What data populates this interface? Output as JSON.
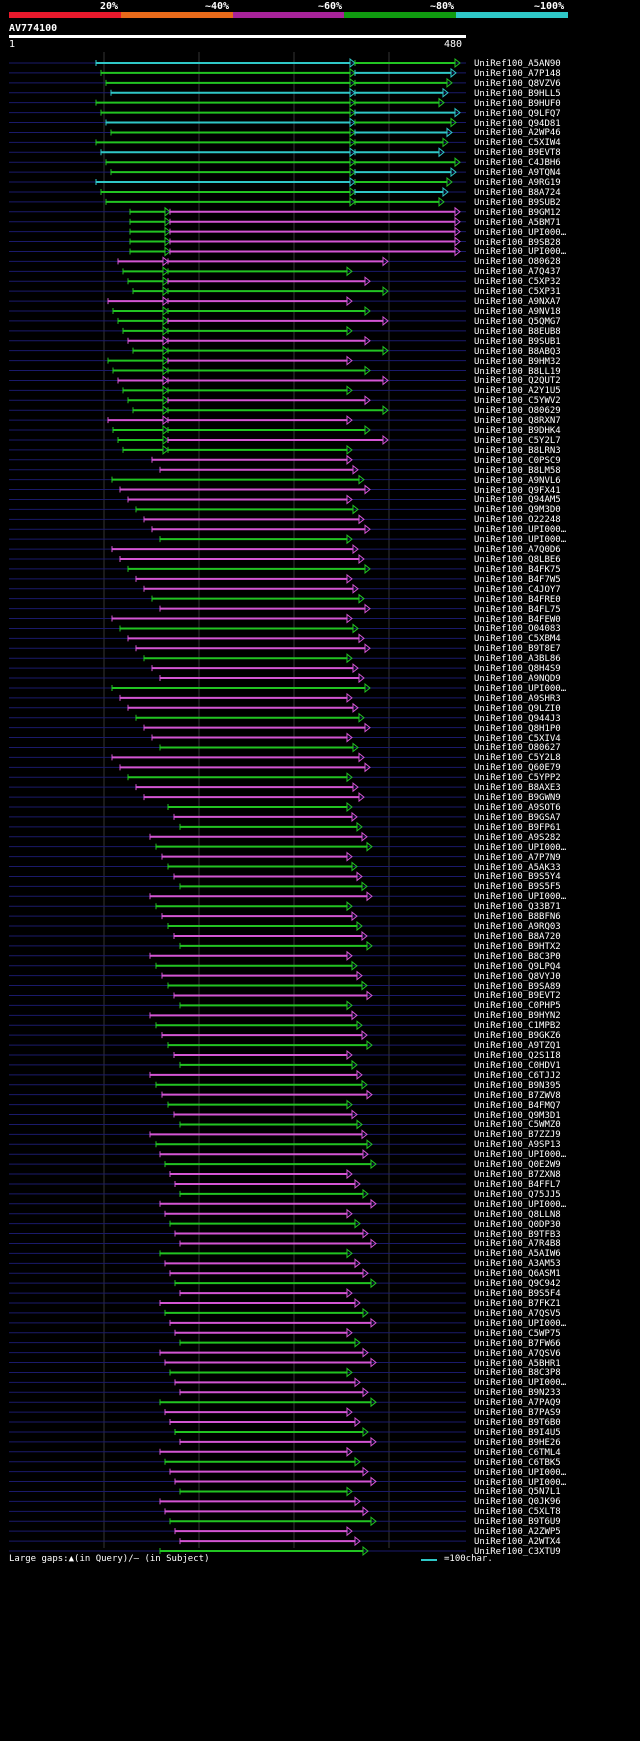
{
  "scale": {
    "labels": [
      "20%",
      "~40%",
      "~60%",
      "~80%",
      "~100%"
    ],
    "colors": [
      "#e8192c",
      "#e86a1a",
      "#a8239a",
      "#109b10",
      "#2fc7c7"
    ]
  },
  "query": {
    "name": "AV774100",
    "start": "1",
    "end": "480"
  },
  "legend": {
    "gaps": "Large gaps:▲(in Query)/– (in Subject)",
    "unit": "=100char."
  },
  "hit_labels": [
    "UniRef100_A5AN90",
    "UniRef100_A7P148",
    "UniRef100_Q8VZV6",
    "UniRef100_B9HLL5",
    "UniRef100_B9HUF0",
    "UniRef100_Q9LFQ7",
    "UniRef100_Q94D81",
    "UniRef100_A2WP46",
    "UniRef100_C5XIW4",
    "UniRef100_B9EVT8",
    "UniRef100_C4JBH6",
    "UniRef100_A9TQN4",
    "UniRef100_A9RG19",
    "UniRef100_B8A724",
    "UniRef100_B9SUB2",
    "UniRef100_B9GM12",
    "UniRef100_A5BM71",
    "UniRef100_UPI000…",
    "UniRef100_B9SB28",
    "UniRef100_UPI000…",
    "UniRef100_O80628",
    "UniRef100_A7Q437",
    "UniRef100_C5XP32",
    "UniRef100_C5XP31",
    "UniRef100_A9NXA7",
    "UniRef100_A9NV18",
    "UniRef100_Q5QMG7",
    "UniRef100_B8EUB8",
    "UniRef100_B9SUB1",
    "UniRef100_B8ABQ3",
    "UniRef100_B9HM32",
    "UniRef100_B8LL19",
    "UniRef100_Q2QUT2",
    "UniRef100_A2Y1U5",
    "UniRef100_C5YWV2",
    "UniRef100_O80629",
    "UniRef100_Q8RXN7",
    "UniRef100_B9DHK4",
    "UniRef100_C5Y2L7",
    "UniRef100_B8LRN3",
    "UniRef100_C0PSC9",
    "UniRef100_B8LM58",
    "UniRef100_A9NVL6",
    "UniRef100_Q9FX41",
    "UniRef100_Q94AM5",
    "UniRef100_Q9M3D0",
    "UniRef100_O22248",
    "UniRef100_UPI000…",
    "UniRef100_UPI000…",
    "UniRef100_A7Q0D6",
    "UniRef100_Q8LBE6",
    "UniRef100_B4FK75",
    "UniRef100_B4F7W5",
    "UniRef100_C4JOY7",
    "UniRef100_B4FRE0",
    "UniRef100_B4FL75",
    "UniRef100_B4FEW0",
    "UniRef100_O04083",
    "UniRef100_C5XBM4",
    "UniRef100_B9T8E7",
    "UniRef100_A3BL86",
    "UniRef100_Q8H4S9",
    "UniRef100_A9NQD9",
    "UniRef100_UPI000…",
    "UniRef100_A9SHR3",
    "UniRef100_Q9LZI0",
    "UniRef100_Q944J3",
    "UniRef100_Q8H1P0",
    "UniRef100_C5XIV4",
    "UniRef100_O80627",
    "UniRef100_C5Y2L8",
    "UniRef100_Q60E79",
    "UniRef100_C5YPP2",
    "UniRef100_B8AXE3",
    "UniRef100_B9GWN9",
    "UniRef100_A9SOT6",
    "UniRef100_B9GSA7",
    "UniRef100_B9FP61",
    "UniRef100_A9S282",
    "UniRef100_UPI000…",
    "UniRef100_A7P7N9",
    "UniRef100_A5AK33",
    "UniRef100_B9S5Y4",
    "UniRef100_B9S5F5",
    "UniRef100_UPI000…",
    "UniRef100_Q33B71",
    "UniRef100_B8BFN6",
    "UniRef100_A9RQ03",
    "UniRef100_B8A720",
    "UniRef100_B9HTX2",
    "UniRef100_B8C3P0",
    "UniRef100_Q9LPQ4",
    "UniRef100_Q8VYJ0",
    "UniRef100_B9SA89",
    "UniRef100_B9EVT2",
    "UniRef100_C0PHP5",
    "UniRef100_B9HYN2",
    "UniRef100_C1MPB2",
    "UniRef100_B9GKZ6",
    "UniRef100_A9TZQ1",
    "UniRef100_Q2S1I8",
    "UniRef100_C0HDV1",
    "UniRef100_C6TJJ2",
    "UniRef100_B9N395",
    "UniRef100_B7ZWV8",
    "UniRef100_B4FMQ7",
    "UniRef100_Q9M3D1",
    "UniRef100_C5WMZ0",
    "UniRef100_B7ZZJ9",
    "UniRef100_A9SP13",
    "UniRef100_UPI000…",
    "UniRef100_Q0E2W9",
    "UniRef100_B7ZXN8",
    "UniRef100_B4FFL7",
    "UniRef100_Q75JJ5",
    "UniRef100_UPI000…",
    "UniRef100_Q8LLN8",
    "UniRef100_Q0DP30",
    "UniRef100_B9TFB3",
    "UniRef100_A7R4B8",
    "UniRef100_A5AIW6",
    "UniRef100_A3AM53",
    "UniRef100_Q6ASM1",
    "UniRef100_Q9C942",
    "UniRef100_B9S5F4",
    "UniRef100_B7FKZ1",
    "UniRef100_A7QSV5",
    "UniRef100_UPI000…",
    "UniRef100_C5WP75",
    "UniRef100_B7FW66",
    "UniRef100_A7QSV6",
    "UniRef100_A5BHR1",
    "UniRef100_B8C3P8",
    "UniRef100_UPI000…",
    "UniRef100_B9N233",
    "UniRef100_A7PAQ9",
    "UniRef100_B7PAS9",
    "UniRef100_B9T6B0",
    "UniRef100_B9I4U5",
    "UniRef100_B9HE26",
    "UniRef100_C6TML4",
    "UniRef100_C6TBK5",
    "UniRef100_UPI000…",
    "UniRef100_UPI000…",
    "UniRef100_Q5N7L1",
    "UniRef100_Q0JK96",
    "UniRef100_C5XLT8",
    "UniRef100_B9T6U9",
    "UniRef100_A2ZWP5",
    "UniRef100_A2WTX4",
    "UniRef100_C3XTU9"
  ]
}
